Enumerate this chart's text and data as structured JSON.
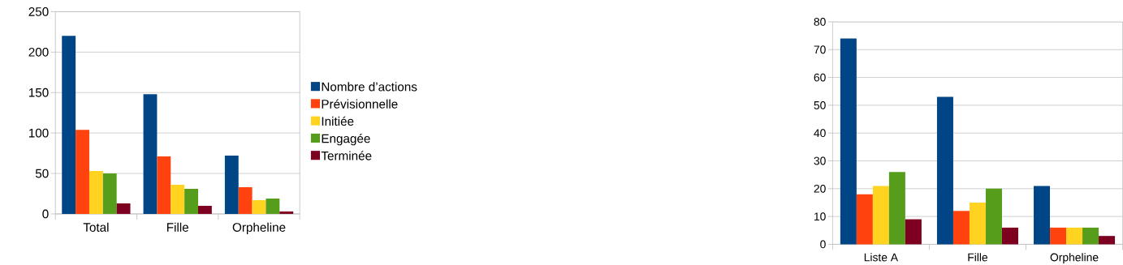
{
  "chart_data": [
    {
      "type": "bar",
      "categories": [
        "Total",
        "Fille",
        "Orpheline"
      ],
      "ylim": [
        0,
        250
      ],
      "yticks": [
        0,
        50,
        100,
        150,
        200,
        250
      ],
      "grid": "y",
      "legend": "right",
      "series": [
        {
          "name": "Nombre d’actions",
          "color": "#004586",
          "values": [
            220,
            148,
            72
          ]
        },
        {
          "name": "Prévisionnelle",
          "color": "#ff420e",
          "values": [
            104,
            71,
            33
          ]
        },
        {
          "name": "Initiée",
          "color": "#ffd320",
          "values": [
            53,
            36,
            17
          ]
        },
        {
          "name": "Engagée",
          "color": "#579d1c",
          "values": [
            50,
            31,
            19
          ]
        },
        {
          "name": "Terminée",
          "color": "#7e0021",
          "values": [
            13,
            10,
            3
          ]
        }
      ]
    },
    {
      "type": "bar",
      "categories": [
        "Liste A",
        "Fille",
        "Orpheline"
      ],
      "ylim": [
        0,
        80
      ],
      "yticks": [
        0,
        10,
        20,
        30,
        40,
        50,
        60,
        70,
        80
      ],
      "grid": "y",
      "series": [
        {
          "color": "#004586",
          "values": [
            74,
            53,
            21
          ]
        },
        {
          "color": "#ff420e",
          "values": [
            18,
            12,
            6
          ]
        },
        {
          "color": "#ffd320",
          "values": [
            21,
            15,
            6
          ]
        },
        {
          "color": "#579d1c",
          "values": [
            26,
            20,
            6
          ]
        },
        {
          "color": "#7e0021",
          "values": [
            9,
            6,
            3
          ]
        }
      ]
    }
  ]
}
